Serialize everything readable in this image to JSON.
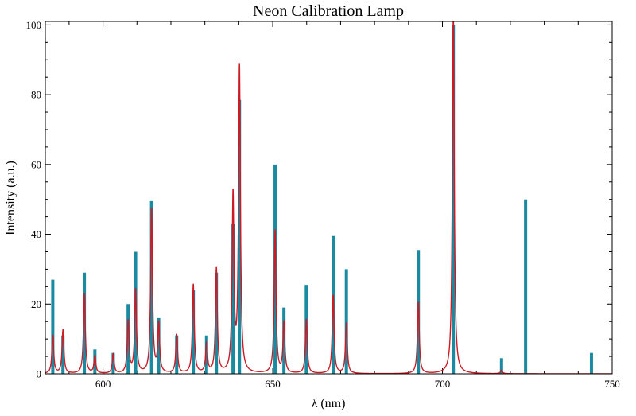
{
  "chart_data": {
    "type": "line",
    "title": "Neon Calibration Lamp",
    "xlabel": "λ (nm)",
    "ylabel": "Intensity (a.u.)",
    "xlim": [
      583,
      750
    ],
    "ylim": [
      0,
      101
    ],
    "x_ticks": [
      600,
      650,
      700,
      750
    ],
    "y_ticks": [
      0,
      20,
      40,
      60,
      80,
      100
    ],
    "x_tick_labels": [
      "600",
      "650",
      "700",
      "750"
    ],
    "y_tick_labels": [
      "0",
      "20",
      "40",
      "60",
      "80",
      "100"
    ],
    "grid": false,
    "colors": {
      "reference": "#1a8aa0",
      "measured": "#cc1b25"
    },
    "series": [
      {
        "style": "sticks",
        "x": [
          585.2,
          588.2,
          594.5,
          597.6,
          603.0,
          607.4,
          609.6,
          614.3,
          616.4,
          621.7,
          626.6,
          630.5,
          633.4,
          638.3,
          640.2,
          650.7,
          653.3,
          659.9,
          667.8,
          671.7,
          692.9,
          703.2,
          717.4,
          724.5,
          743.9
        ],
        "y": [
          27,
          11,
          29,
          7,
          6,
          20,
          35,
          49.5,
          16,
          11,
          24,
          11,
          29,
          43,
          78.5,
          60,
          19,
          25.5,
          39.5,
          30,
          35.5,
          100,
          4.5,
          50,
          6
        ]
      },
      {
        "style": "profile",
        "x": [
          585.2,
          588.2,
          594.5,
          597.6,
          603.0,
          607.4,
          609.6,
          614.3,
          616.4,
          621.7,
          626.6,
          630.5,
          633.4,
          638.3,
          640.2,
          650.7,
          653.3,
          659.9,
          667.8,
          671.7,
          692.9,
          703.2,
          717.4
        ],
        "y": [
          11,
          12.5,
          23,
          5,
          5.5,
          15,
          24,
          47,
          14,
          11,
          25.5,
          8.5,
          30,
          50.5,
          87.5,
          41,
          14.5,
          15.5,
          22.5,
          14.5,
          20.5,
          104,
          1
        ]
      }
    ]
  }
}
